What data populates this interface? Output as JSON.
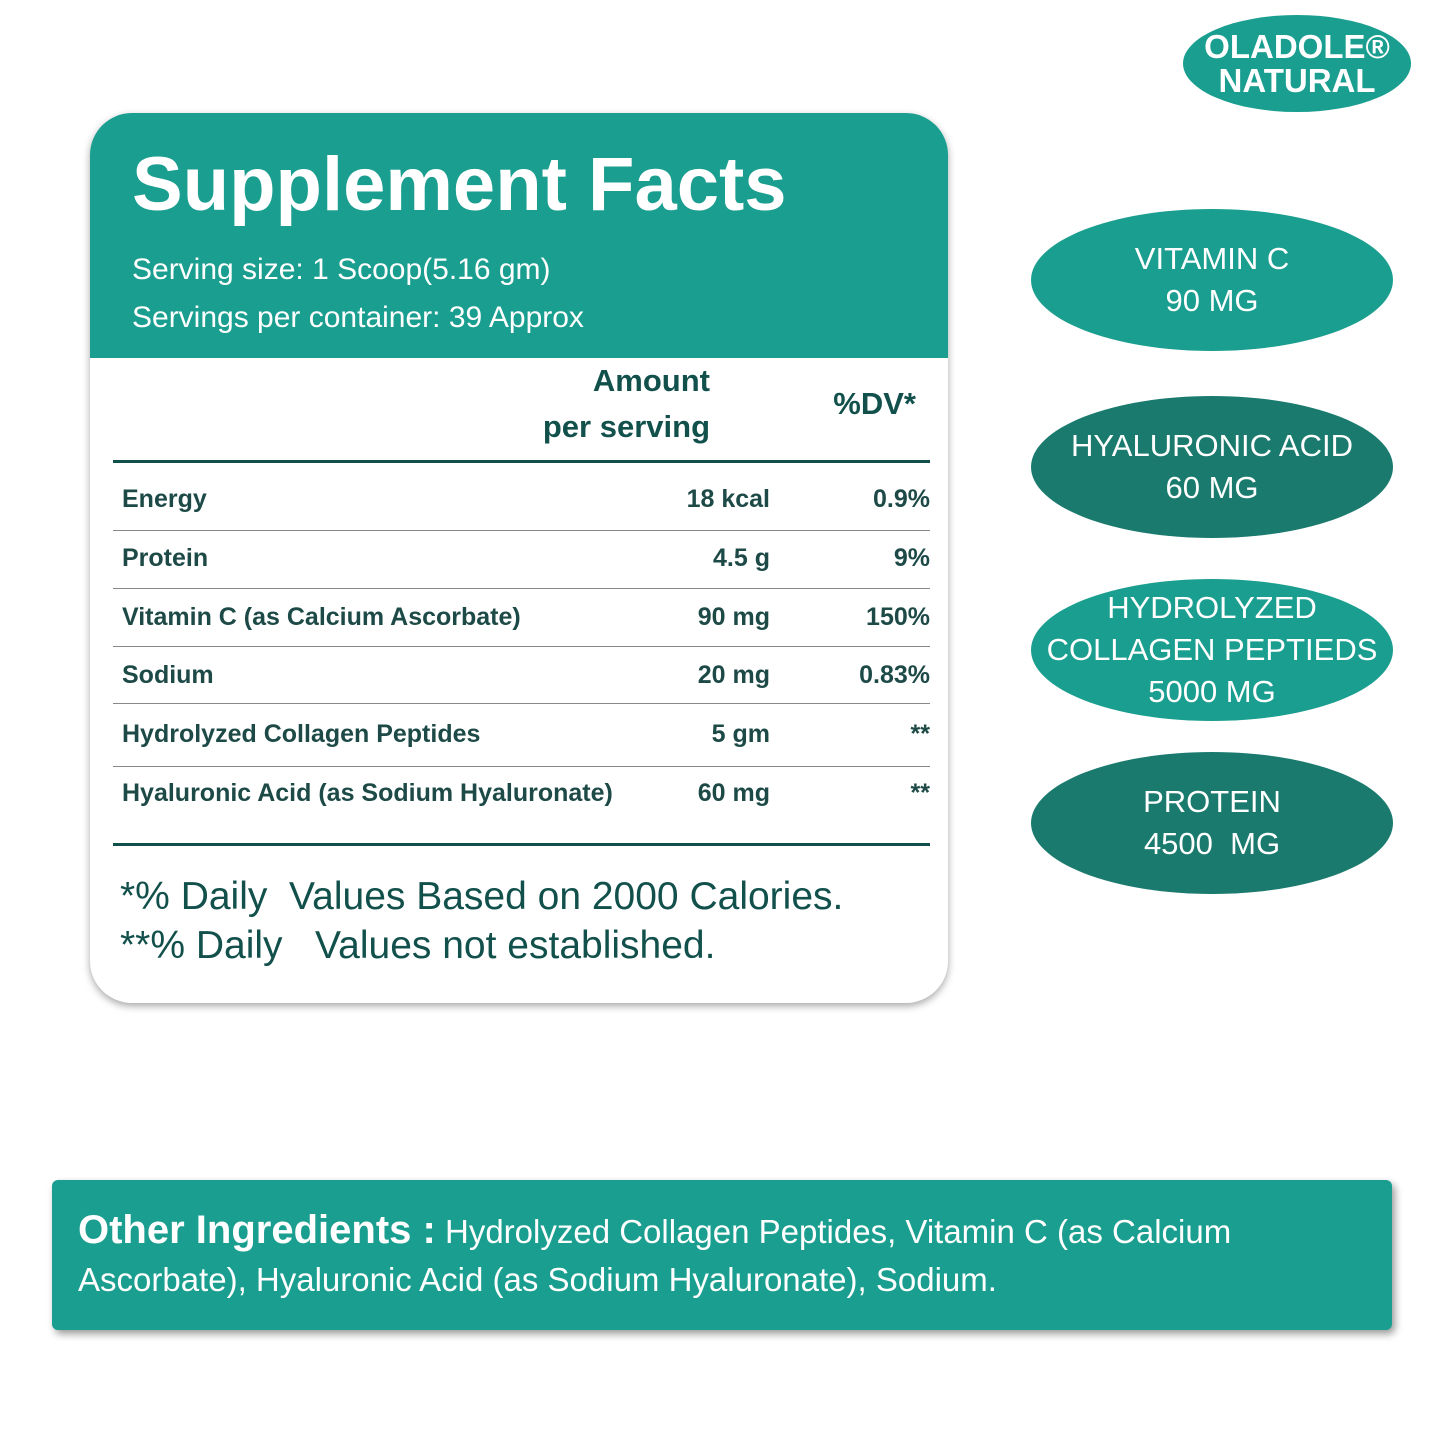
{
  "brand": {
    "name": "OLADOLE®",
    "line2": "NATURAL"
  },
  "facts": {
    "title": "Supplement Facts",
    "serving_size": "Serving size: 1 Scoop(5.16 gm)",
    "servings_per_container": "Servings per container: 39 Approx",
    "header": {
      "amount_line1": "Amount",
      "amount_line2": "per serving",
      "dv": "%DV*"
    },
    "rows": [
      [
        "Energy",
        "18 kcal",
        "0.9%"
      ],
      [
        "Protein",
        "4.5 g",
        "9%"
      ],
      [
        "Vitamin C (as Calcium Ascorbate)",
        "90 mg",
        "150%"
      ],
      [
        "Sodium",
        "20 mg",
        "0.83%"
      ],
      [
        "Hydrolyzed Collagen Peptides",
        "5 gm",
        "**"
      ],
      [
        "Hyaluronic Acid (as Sodium Hyaluronate)",
        "60 mg",
        "**"
      ]
    ],
    "footnotes": [
      "*% Daily  Values Based on 2000 Calories.",
      "**% Daily   Values not established."
    ]
  },
  "badges": [
    {
      "lines": [
        "VITAMIN C",
        "90 MG"
      ]
    },
    {
      "lines": [
        "HYALURONIC ACID",
        "60 MG"
      ]
    },
    {
      "lines": [
        "HYDROLYZED",
        "COLLAGEN PEPTIEDS",
        "5000 MG"
      ]
    },
    {
      "lines": [
        "PROTEIN",
        "4500  MG"
      ]
    }
  ],
  "other_ingredients": {
    "label": "Other Ingredients :",
    "text": "Hydrolyzed Collagen Peptides, Vitamin C (as Calcium Ascorbate), Hyaluronic Acid (as Sodium Hyaluronate), Sodium."
  }
}
